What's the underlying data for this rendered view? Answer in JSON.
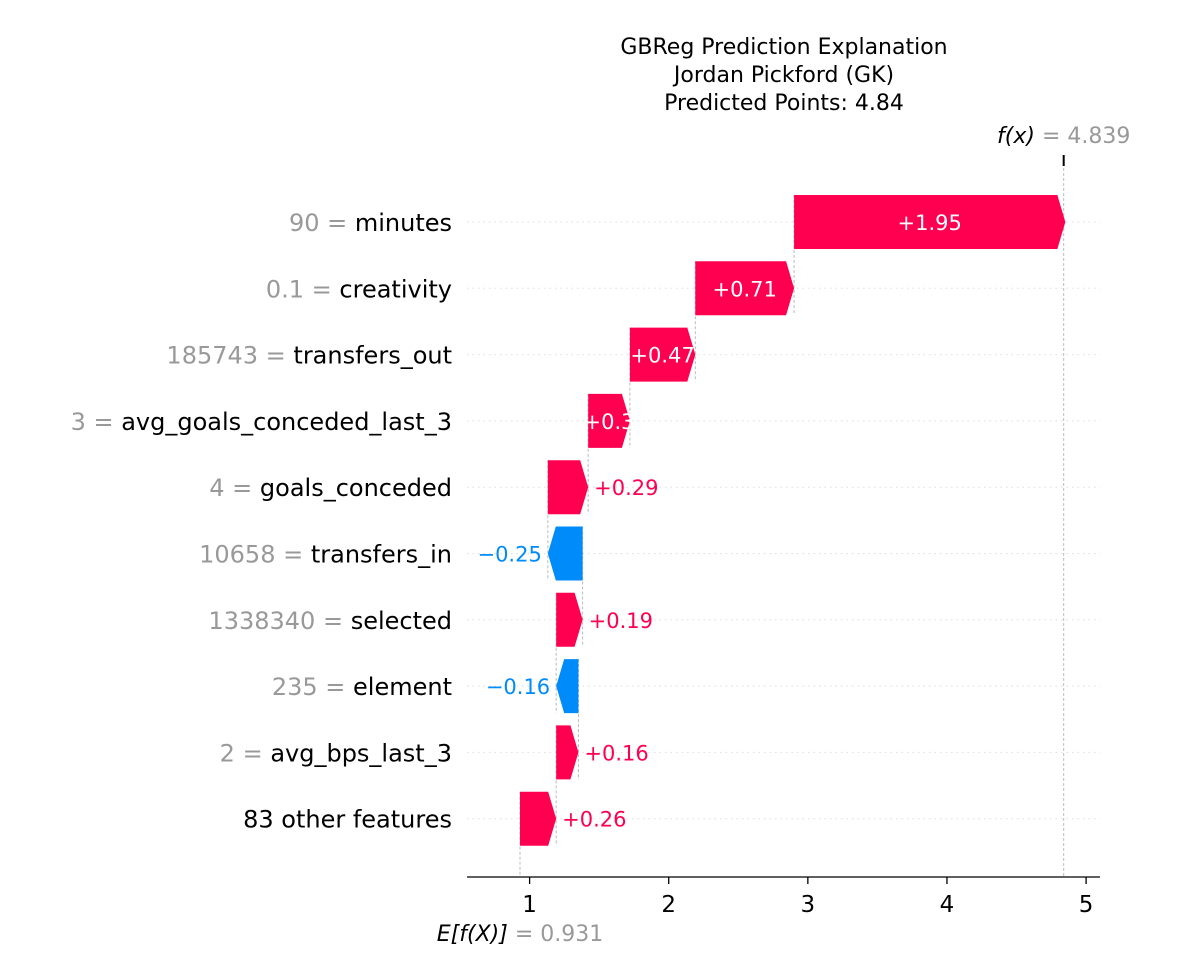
{
  "chart_data": {
    "type": "waterfall",
    "title_lines": [
      "GBReg Prediction Explanation",
      "Jordan Pickford (GK)",
      "Predicted Points: 4.84"
    ],
    "base_value": 0.931,
    "base_label": "E[f(X)]",
    "base_value_text": "0.931",
    "final_value": 4.839,
    "final_label": "f(x)",
    "final_value_text": "4.839",
    "equals": "=",
    "xlim": [
      0.55,
      5.1
    ],
    "xticks": [
      1,
      2,
      3,
      4,
      5
    ],
    "xtick_labels": [
      "1",
      "2",
      "3",
      "4",
      "5"
    ],
    "grid": true,
    "colors": {
      "positive": "#ff0051",
      "negative": "#008bfb",
      "value_text": "#999999"
    },
    "features": [
      {
        "value": "90",
        "name": "minutes",
        "contribution": 1.95,
        "label": "+1.95",
        "label_inside": true
      },
      {
        "value": "0.1",
        "name": "creativity",
        "contribution": 0.71,
        "label": "+0.71",
        "label_inside": true
      },
      {
        "value": "185743",
        "name": "transfers_out",
        "contribution": 0.47,
        "label": "+0.47",
        "label_inside": true
      },
      {
        "value": "3",
        "name": "avg_goals_conceded_last_3",
        "contribution": 0.3,
        "label": "+0.3",
        "label_inside": true
      },
      {
        "value": "4",
        "name": "goals_conceded",
        "contribution": 0.29,
        "label": "+0.29",
        "label_inside": false
      },
      {
        "value": "10658",
        "name": "transfers_in",
        "contribution": -0.25,
        "label": "−0.25",
        "label_inside": false
      },
      {
        "value": "1338340",
        "name": "selected",
        "contribution": 0.19,
        "label": "+0.19",
        "label_inside": false
      },
      {
        "value": "235",
        "name": "element",
        "contribution": -0.16,
        "label": "−0.16",
        "label_inside": false
      },
      {
        "value": "2",
        "name": "avg_bps_last_3",
        "contribution": 0.16,
        "label": "+0.16",
        "label_inside": false
      },
      {
        "value": "",
        "name": "83 other features",
        "contribution": 0.26,
        "label": "+0.26",
        "label_inside": false
      }
    ]
  }
}
